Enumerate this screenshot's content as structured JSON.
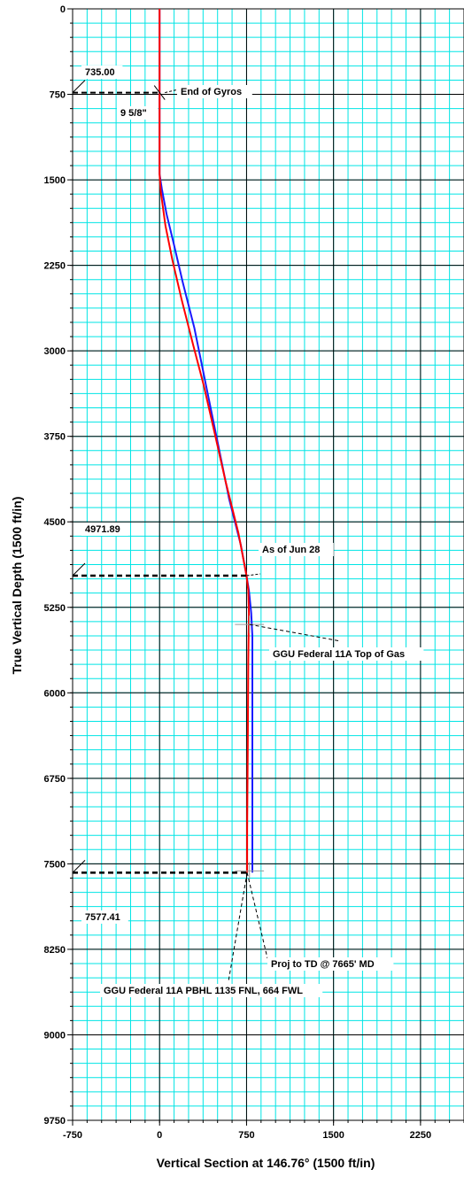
{
  "chart_data": {
    "type": "line",
    "xlabel": "Vertical Section at 146.76° (1500 ft/in)",
    "ylabel": "True Vertical Depth (1500 ft/in)",
    "xlim": [
      -750,
      2625
    ],
    "ylim": [
      0,
      9750
    ],
    "y_inverted": true,
    "x_ticks": [
      -750,
      0,
      750,
      1500,
      2250
    ],
    "x_tick_labels": [
      "-750",
      "0",
      "750",
      "1500",
      "2250"
    ],
    "y_ticks": [
      0,
      750,
      1500,
      2250,
      3000,
      3750,
      4500,
      5250,
      6000,
      6750,
      7500,
      8250,
      9000,
      9750
    ],
    "y_tick_labels": [
      "0",
      "750",
      "1500",
      "2250",
      "3000",
      "3750",
      "4500",
      "5250",
      "6000",
      "6750",
      "7500",
      "8250",
      "9000",
      "9750"
    ],
    "grid": true,
    "minor_grid_step": 125,
    "colors": {
      "grid": "#00e5e5",
      "major_grid": "#000000",
      "series_planned": "#1a1aff",
      "series_actual": "#ff0000",
      "annotation": "#000000",
      "target": "#999999"
    },
    "series": [
      {
        "color": "#1a1aff",
        "points": [
          [
            0,
            0
          ],
          [
            0,
            735
          ],
          [
            0,
            1450
          ],
          [
            20,
            1580
          ],
          [
            60,
            1800
          ],
          [
            120,
            2050
          ],
          [
            200,
            2400
          ],
          [
            300,
            2800
          ],
          [
            400,
            3300
          ],
          [
            500,
            3800
          ],
          [
            600,
            4300
          ],
          [
            700,
            4700
          ],
          [
            750,
            4971.89
          ],
          [
            770,
            5100
          ],
          [
            790,
            5300
          ],
          [
            800,
            5500
          ],
          [
            800,
            7577.41
          ]
        ]
      },
      {
        "color": "#ff0000",
        "points": [
          [
            0,
            0
          ],
          [
            0,
            735
          ],
          [
            0,
            1450
          ],
          [
            10,
            1600
          ],
          [
            50,
            1900
          ],
          [
            110,
            2200
          ],
          [
            190,
            2550
          ],
          [
            290,
            2950
          ],
          [
            380,
            3300
          ],
          [
            470,
            3700
          ],
          [
            570,
            4150
          ],
          [
            680,
            4600
          ],
          [
            750,
            4971.89
          ],
          [
            765,
            5100
          ],
          [
            770,
            5300
          ],
          [
            765,
            5700
          ],
          [
            760,
            6500
          ],
          [
            755,
            7200
          ],
          [
            755,
            7577.41
          ]
        ]
      }
    ],
    "annotations": [
      {
        "text": "735.00",
        "md": 735,
        "value": 735.0
      },
      {
        "text": "End of Gyros",
        "md": 735
      },
      {
        "text": "9 5/8\"",
        "md": 735
      },
      {
        "text": "4971.89",
        "value": 4971.89
      },
      {
        "text": "As of Jun 28",
        "value": 4971.89
      },
      {
        "text": "GGU Federal 11A Top of Gas",
        "value": 5400
      },
      {
        "text": "7577.41",
        "value": 7577.41
      },
      {
        "text": "Proj to TD @ 7665' MD",
        "value": 7577.41
      },
      {
        "text": "GGU Federal 11A PBHL 1135 FNL, 664 FWL",
        "value": 7577.41
      }
    ]
  }
}
